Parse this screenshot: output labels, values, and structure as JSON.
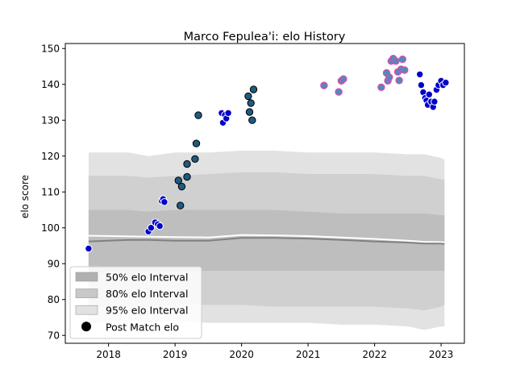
{
  "chart_data": {
    "type": "scatter",
    "title": "Marco Fepulea'i: elo History",
    "xlabel": "",
    "ylabel": "elo score",
    "xlim": [
      2017.35,
      2023.35
    ],
    "ylim": [
      67.8,
      151.4
    ],
    "x_ticks": [
      2018,
      2019,
      2020,
      2021,
      2022,
      2023
    ],
    "y_ticks": [
      70,
      80,
      90,
      100,
      110,
      120,
      130,
      140,
      150
    ],
    "grid": false,
    "legend_position": "lower-left",
    "legend": [
      {
        "label": "50% elo Interval",
        "kind": "patch",
        "color": "#b0b0b0"
      },
      {
        "label": "80% elo Interval",
        "kind": "patch",
        "color": "#c8c8c8"
      },
      {
        "label": "95% elo Interval",
        "kind": "patch",
        "color": "#e2e2e2"
      },
      {
        "label": "Post Match elo",
        "kind": "marker",
        "color": "#000000"
      }
    ],
    "bands": {
      "x": [
        2017.7,
        2018.3,
        2018.6,
        2019.0,
        2019.5,
        2020.0,
        2020.5,
        2021.0,
        2021.5,
        2022.0,
        2022.5,
        2022.75,
        2023.0,
        2023.05
      ],
      "band95": {
        "low": [
          73.5,
          74.0,
          73.5,
          74.0,
          73.5,
          73.5,
          73.5,
          73.5,
          73.0,
          73.0,
          72.5,
          71.5,
          72.5,
          72.5
        ],
        "high": [
          121.0,
          121.0,
          120.0,
          121.0,
          121.0,
          121.5,
          121.5,
          121.0,
          121.0,
          121.0,
          120.5,
          120.5,
          119.5,
          119.0
        ]
      },
      "band80": {
        "low": [
          78.0,
          78.0,
          78.0,
          78.5,
          78.5,
          78.5,
          78.0,
          78.0,
          78.0,
          78.0,
          77.5,
          77.0,
          78.0,
          78.5
        ],
        "high": [
          114.5,
          114.5,
          114.0,
          114.5,
          115.0,
          115.5,
          115.5,
          115.0,
          115.0,
          115.0,
          114.5,
          114.5,
          113.5,
          113.5
        ]
      },
      "band50": {
        "low": [
          87.5,
          88.0,
          88.0,
          88.0,
          88.0,
          88.0,
          88.0,
          88.0,
          88.0,
          88.0,
          88.0,
          88.0,
          88.0,
          88.0
        ],
        "high": [
          105.0,
          105.0,
          104.5,
          105.0,
          105.0,
          105.0,
          105.0,
          104.5,
          104.0,
          104.0,
          104.0,
          104.0,
          103.5,
          103.5
        ]
      },
      "median": [
        96.2,
        96.6,
        96.6,
        96.4,
        96.4,
        97.2,
        97.2,
        97.0,
        96.6,
        96.2,
        95.9,
        95.6,
        95.6,
        95.5
      ],
      "mean": [
        97.8,
        97.6,
        97.5,
        97.4,
        97.3,
        98.0,
        97.9,
        97.7,
        97.3,
        96.9,
        96.4,
        96.1,
        96.0,
        95.9
      ]
    },
    "point_groups": [
      {
        "fill": "#0000cc",
        "edge": "#ffffff",
        "points": [
          [
            2017.7,
            94.2
          ],
          [
            2018.6,
            99.0
          ],
          [
            2018.64,
            100.0
          ],
          [
            2018.7,
            101.5
          ],
          [
            2018.74,
            101.0
          ],
          [
            2018.77,
            100.5
          ],
          [
            2018.8,
            107.5
          ],
          [
            2018.82,
            108.0
          ],
          [
            2018.84,
            107.2
          ]
        ]
      },
      {
        "fill": "#1f5a80",
        "edge": "#000000",
        "points": [
          [
            2019.08,
            106.2
          ],
          [
            2019.05,
            113.2
          ],
          [
            2019.1,
            111.5
          ],
          [
            2019.18,
            114.2
          ],
          [
            2019.18,
            117.8
          ],
          [
            2019.3,
            119.2
          ],
          [
            2019.32,
            123.5
          ],
          [
            2019.35,
            131.4
          ]
        ]
      },
      {
        "fill": "#0000cc",
        "edge": "#ffffff",
        "points": [
          [
            2019.7,
            132.0
          ],
          [
            2019.72,
            129.3
          ],
          [
            2019.75,
            131.5
          ],
          [
            2019.77,
            130.5
          ],
          [
            2019.8,
            132.0
          ]
        ]
      },
      {
        "fill": "#1f5a80",
        "edge": "#000000",
        "points": [
          [
            2020.1,
            136.7
          ],
          [
            2020.12,
            132.3
          ],
          [
            2020.14,
            134.8
          ],
          [
            2020.16,
            130.0
          ],
          [
            2020.18,
            138.6
          ]
        ]
      },
      {
        "fill": "#5588bb",
        "edge": "#ee44aa",
        "points": [
          [
            2021.24,
            139.7
          ],
          [
            2021.46,
            137.9
          ],
          [
            2021.5,
            141.0
          ],
          [
            2021.53,
            141.5
          ],
          [
            2022.1,
            139.2
          ],
          [
            2022.18,
            143.2
          ],
          [
            2022.2,
            141.0
          ],
          [
            2022.22,
            142.0
          ],
          [
            2022.25,
            146.5
          ],
          [
            2022.28,
            147.2
          ],
          [
            2022.32,
            146.5
          ],
          [
            2022.35,
            143.5
          ],
          [
            2022.37,
            141.1
          ],
          [
            2022.4,
            144.2
          ],
          [
            2022.42,
            147.0
          ],
          [
            2022.45,
            144.0
          ]
        ]
      },
      {
        "fill": "#0000cc",
        "edge": "#ffffff",
        "points": [
          [
            2022.68,
            142.8
          ],
          [
            2022.7,
            139.8
          ],
          [
            2022.73,
            137.8
          ],
          [
            2022.76,
            136.2
          ],
          [
            2022.78,
            135.5
          ],
          [
            2022.8,
            134.3
          ],
          [
            2022.82,
            137.2
          ],
          [
            2022.85,
            135.2
          ],
          [
            2022.88,
            133.7
          ],
          [
            2022.9,
            135.2
          ],
          [
            2022.93,
            138.5
          ],
          [
            2022.96,
            139.8
          ],
          [
            2023.0,
            141.0
          ],
          [
            2023.03,
            139.8
          ],
          [
            2023.07,
            140.5
          ]
        ]
      }
    ]
  }
}
